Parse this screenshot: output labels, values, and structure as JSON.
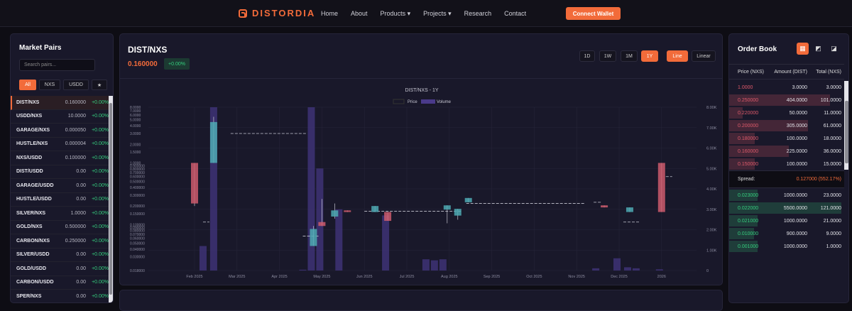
{
  "nav": {
    "brand": "DISTORDIA",
    "links": [
      "Home",
      "About",
      "Products ▾",
      "Projects ▾",
      "Research",
      "Contact"
    ],
    "connect_label": "Connect Wallet"
  },
  "market": {
    "title": "Market Pairs",
    "search_placeholder": "Search pairs...",
    "filters": [
      "All",
      "NXS",
      "USDD",
      "★"
    ],
    "pairs": [
      {
        "symbol": "DIST/NXS",
        "price": "0.160000",
        "change": "+0.00%"
      },
      {
        "symbol": "USDD/NXS",
        "price": "10.0000",
        "change": "+0.00%"
      },
      {
        "symbol": "GARAGE/NXS",
        "price": "0.000050",
        "change": "+0.00%"
      },
      {
        "symbol": "HUSTLE/NXS",
        "price": "0.000004",
        "change": "+0.00%"
      },
      {
        "symbol": "NXS/USDD",
        "price": "0.100000",
        "change": "+0.00%"
      },
      {
        "symbol": "DIST/USDD",
        "price": "0.00",
        "change": "+0.00%"
      },
      {
        "symbol": "GARAGE/USDD",
        "price": "0.00",
        "change": "+0.00%"
      },
      {
        "symbol": "HUSTLE/USDD",
        "price": "0.00",
        "change": "+0.00%"
      },
      {
        "symbol": "SILVER/NXS",
        "price": "1.0000",
        "change": "+0.00%"
      },
      {
        "symbol": "GOLD/NXS",
        "price": "0.500000",
        "change": "+0.00%"
      },
      {
        "symbol": "CARBON/NXS",
        "price": "0.250000",
        "change": "+0.00%"
      },
      {
        "symbol": "SILVER/USDD",
        "price": "0.00",
        "change": "+0.00%"
      },
      {
        "symbol": "GOLD/USDD",
        "price": "0.00",
        "change": "+0.00%"
      },
      {
        "symbol": "CARBON/USDD",
        "price": "0.00",
        "change": "+0.00%"
      },
      {
        "symbol": "SPER/NXS",
        "price": "0.00",
        "change": "+0.00%"
      }
    ]
  },
  "chart_panel": {
    "pair": "DIST/NXS",
    "price": "0.160000",
    "change": "+0.00%",
    "timeframes": [
      "1D",
      "1W",
      "1M",
      "1Y"
    ],
    "active_timeframe": "1Y",
    "modes": [
      "Line",
      "Linear"
    ]
  },
  "chart_data": {
    "type": "candlestick+bar",
    "title": "DIST/NXS - 1Y",
    "legend": [
      "Price",
      "Volume"
    ],
    "y_left_log_ticks": [
      8.0,
      7.0,
      6.0,
      5.0,
      4.0,
      3.0,
      2.0,
      1.5,
      1.0,
      0.9,
      0.8,
      0.7,
      0.6,
      0.5,
      0.4,
      0.3,
      0.2,
      0.15,
      0.1,
      0.09,
      0.08,
      0.07,
      0.06,
      0.05,
      0.04,
      0.03,
      0.018
    ],
    "y_left_labels": [
      "8.0000",
      "7.0000",
      "6.0000",
      "5.0000",
      "4.0000",
      "3.0000",
      "2.0000",
      "1.5000",
      "1.0000",
      "0.900000",
      "0.800000",
      "0.700000",
      "0.600000",
      "0.500000",
      "0.400000",
      "0.300000",
      "0.200000",
      "0.150000",
      "0.100000",
      "0.090000",
      "0.080000",
      "0.070000",
      "0.060000",
      "0.050000",
      "0.040000",
      "0.030000",
      "0.018000"
    ],
    "y_right_ticks": [
      "8.00K",
      "7.00K",
      "6.00K",
      "5.00K",
      "4.00K",
      "3.00K",
      "2.00K",
      "1.00K",
      "0"
    ],
    "x_ticks": [
      "Feb 2025",
      "Mar 2025",
      "Apr 2025",
      "May 2025",
      "Jun 2025",
      "Jul 2025",
      "Aug 2025",
      "Sep 2025",
      "Oct 2025",
      "Nov 2025",
      "Dec 2025",
      "2026"
    ],
    "volume": [
      {
        "month": 1.2,
        "value": 1200
      },
      {
        "month": 1.45,
        "value": 8000
      },
      {
        "month": 3.55,
        "value": 40
      },
      {
        "month": 3.75,
        "value": 8000
      },
      {
        "month": 3.95,
        "value": 5000
      },
      {
        "month": 4.4,
        "value": 3000
      },
      {
        "month": 5.5,
        "value": 2700
      },
      {
        "month": 6.45,
        "value": 550
      },
      {
        "month": 6.65,
        "value": 500
      },
      {
        "month": 6.85,
        "value": 550
      },
      {
        "month": 10.45,
        "value": 110
      },
      {
        "month": 10.95,
        "value": 600
      },
      {
        "month": 11.2,
        "value": 160
      },
      {
        "month": 11.4,
        "value": 110
      },
      {
        "month": 11.95,
        "value": 60
      }
    ],
    "candles": [
      {
        "month": 1.0,
        "open": 1.0,
        "close": 0.22,
        "high": 1.0,
        "low": 0.2,
        "dir": "down"
      },
      {
        "month": 1.45,
        "open": 1.0,
        "close": 4.6,
        "high": 5.6,
        "low": 1.0,
        "dir": "up"
      },
      {
        "month": 3.8,
        "open": 0.045,
        "close": 0.085,
        "high": 0.095,
        "low": 0.045,
        "dir": "up"
      },
      {
        "month": 4.0,
        "open": 0.095,
        "close": 0.11,
        "high": 0.26,
        "low": 0.095,
        "dir": "down"
      },
      {
        "month": 4.3,
        "open": 0.135,
        "close": 0.17,
        "high": 0.22,
        "low": 0.125,
        "dir": "up"
      },
      {
        "month": 4.6,
        "open": 0.17,
        "close": 0.16,
        "high": 0.17,
        "low": 0.16,
        "dir": "down"
      },
      {
        "month": 5.25,
        "open": 0.16,
        "close": 0.2,
        "high": 0.2,
        "low": 0.16,
        "dir": "up"
      },
      {
        "month": 5.55,
        "open": 0.16,
        "close": 0.115,
        "high": 0.16,
        "low": 0.115,
        "dir": "down"
      },
      {
        "month": 6.95,
        "open": 0.175,
        "close": 0.205,
        "high": 0.205,
        "low": 0.105,
        "dir": "up"
      },
      {
        "month": 7.2,
        "open": 0.14,
        "close": 0.18,
        "high": 0.18,
        "low": 0.12,
        "dir": "up"
      },
      {
        "month": 7.45,
        "open": 0.23,
        "close": 0.27,
        "high": 0.27,
        "low": 0.23,
        "dir": "up"
      },
      {
        "month": 10.65,
        "open": 0.205,
        "close": 0.19,
        "high": 0.205,
        "low": 0.19,
        "dir": "down"
      },
      {
        "month": 11.25,
        "open": 0.16,
        "close": 0.19,
        "high": 0.19,
        "low": 0.16,
        "dir": "up"
      },
      {
        "month": 12.0,
        "open": 0.16,
        "close": 1.0,
        "high": 1.0,
        "low": 0.16,
        "dir": "down"
      }
    ],
    "grid": true,
    "legend_position": "top-center"
  },
  "orderbook": {
    "title": "Order Book",
    "headers": [
      "Price (NXS)",
      "Amount (DIST)",
      "Total (NXS)"
    ],
    "asks": [
      {
        "price": "1.0000",
        "amount": "3.0000",
        "total": "3.0000",
        "depth": 0.0
      },
      {
        "price": "0.250000",
        "amount": "404.0000",
        "total": "101.0000",
        "depth": 0.9
      },
      {
        "price": "0.220000",
        "amount": "50.0000",
        "total": "11.0000",
        "depth": 0.12
      },
      {
        "price": "0.200000",
        "amount": "305.0000",
        "total": "61.0000",
        "depth": 0.7
      },
      {
        "price": "0.180000",
        "amount": "100.0000",
        "total": "18.0000",
        "depth": 0.23
      },
      {
        "price": "0.160000",
        "amount": "225.0000",
        "total": "36.0000",
        "depth": 0.53
      },
      {
        "price": "0.150000",
        "amount": "100.0000",
        "total": "15.0000",
        "depth": 0.23
      }
    ],
    "spread_label": "Spread:",
    "spread_value": "0.127000 (552.17%)",
    "bids": [
      {
        "price": "0.023000",
        "amount": "1000.0000",
        "total": "23.0000",
        "depth": 0.25
      },
      {
        "price": "0.022000",
        "amount": "5500.0000",
        "total": "121.0000",
        "depth": 1.0
      },
      {
        "price": "0.021000",
        "amount": "1000.0000",
        "total": "21.0000",
        "depth": 0.25
      },
      {
        "price": "0.010000",
        "amount": "900.0000",
        "total": "9.0000",
        "depth": 0.22
      },
      {
        "price": "0.001000",
        "amount": "1000.0000",
        "total": "1.0000",
        "depth": 0.25
      }
    ]
  }
}
